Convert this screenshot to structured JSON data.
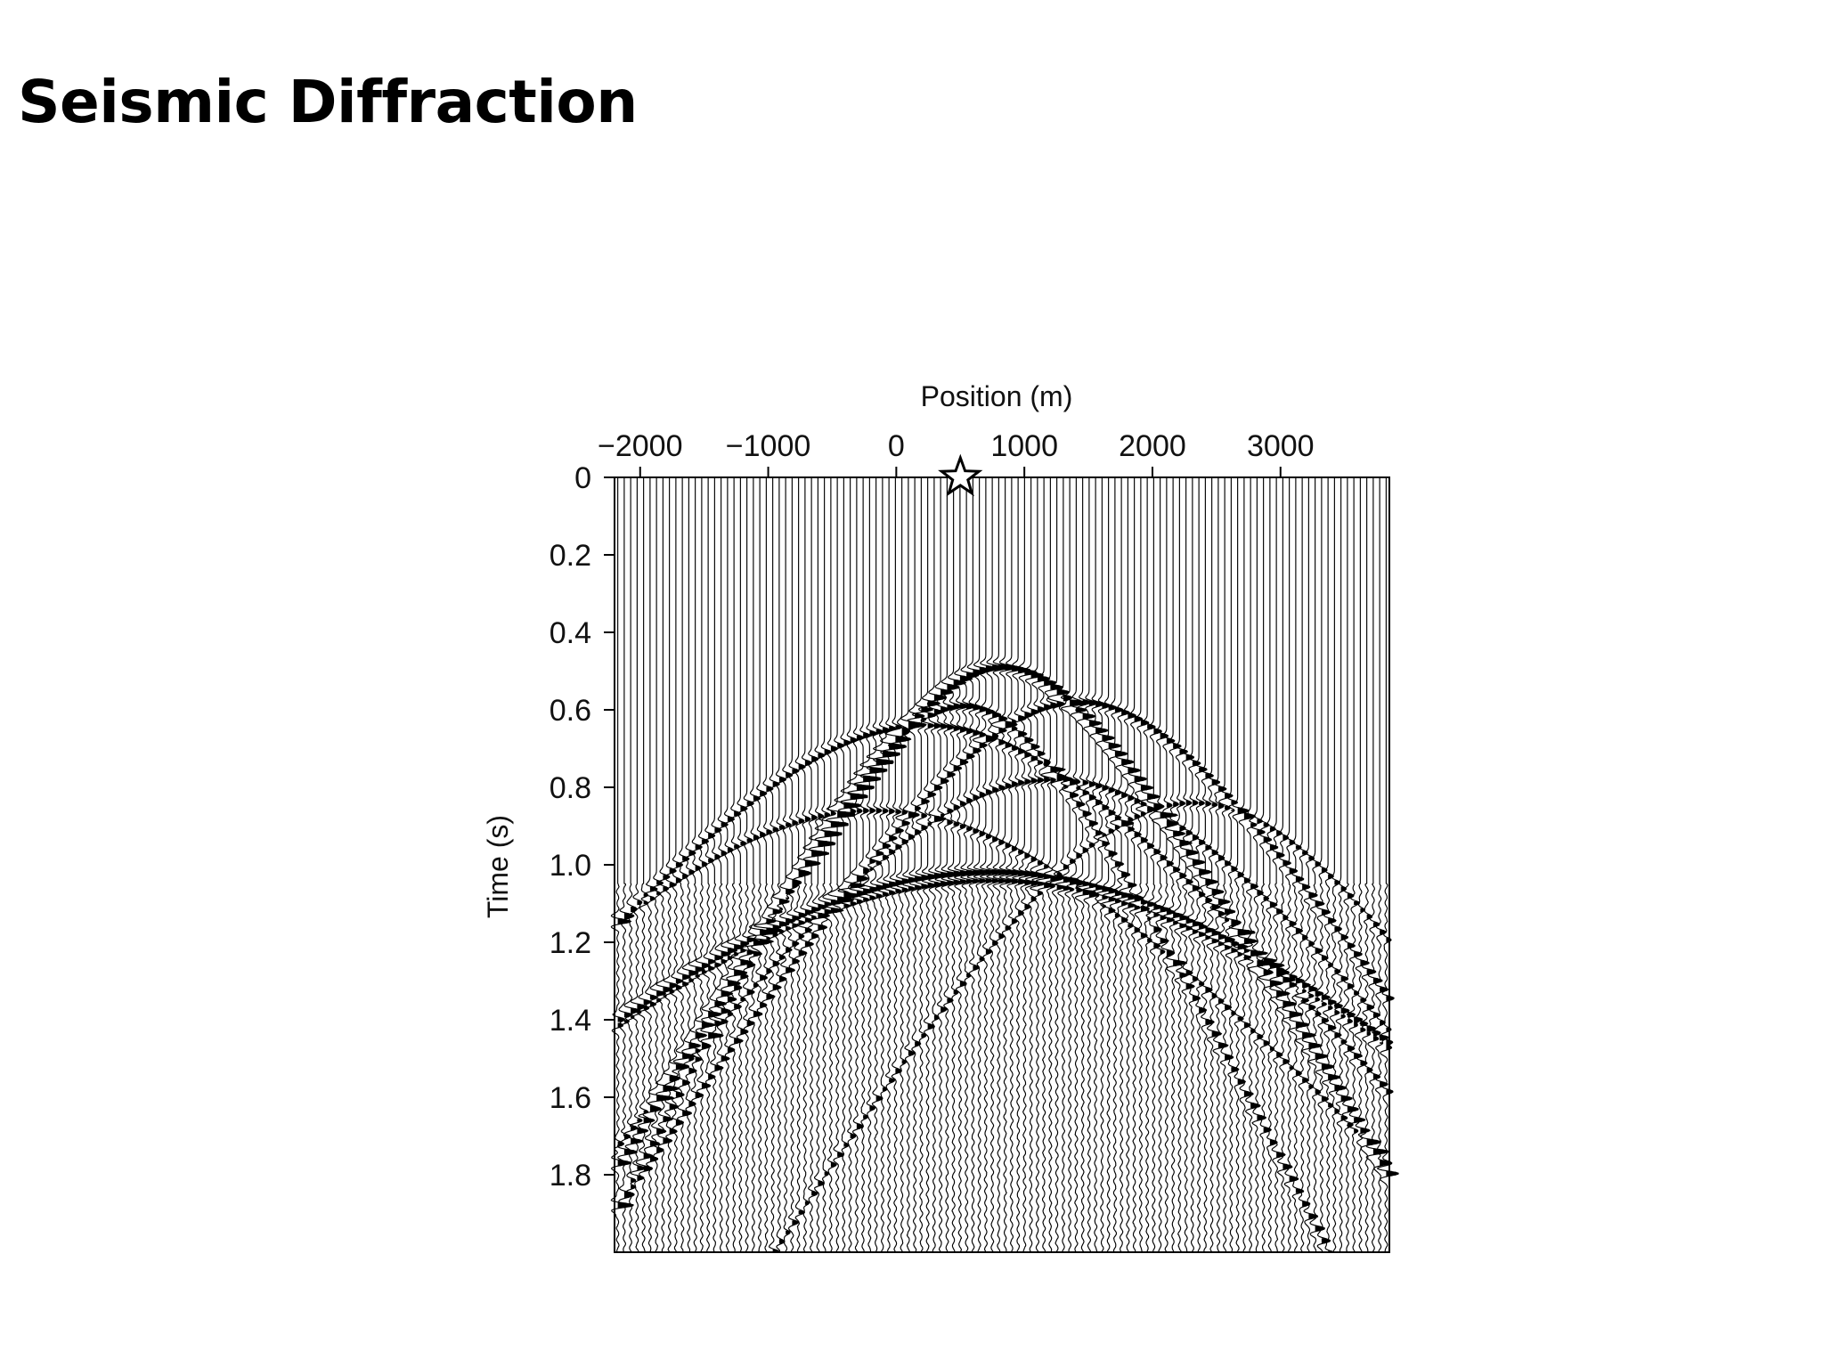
{
  "slide": {
    "title": "Seismic Diffraction"
  },
  "chart_data": {
    "type": "seismic-wiggle",
    "title": "",
    "xlabel": "Position (m)",
    "ylabel": "Time (s)",
    "xlim": [
      -2200,
      3850
    ],
    "ylim": [
      0,
      2.0
    ],
    "y_inverted": true,
    "x_axis_position": "top",
    "x_ticks": [
      -2000,
      -1000,
      0,
      1000,
      2000,
      3000
    ],
    "x_tick_labels": [
      "−2000",
      "−1000",
      "0",
      "1000",
      "2000",
      "3000"
    ],
    "y_ticks": [
      0,
      0.2,
      0.4,
      0.6,
      0.8,
      1.0,
      1.2,
      1.4,
      1.6,
      1.8
    ],
    "y_tick_labels": [
      "0",
      "0.2",
      "0.4",
      "0.6",
      "0.8",
      "1.0",
      "1.2",
      "1.4",
      "1.6",
      "1.8"
    ],
    "trace_count": 120,
    "source_marker": {
      "symbol": "star",
      "x": 500,
      "t": 0
    },
    "events": [
      {
        "apex_x": 800,
        "apex_t": 0.49,
        "velocity": 1750,
        "strength": 1.0
      },
      {
        "apex_x": 500,
        "apex_t": 0.59,
        "velocity": 1500,
        "strength": 0.7
      },
      {
        "apex_x": 1400,
        "apex_t": 0.58,
        "velocity": 2000,
        "strength": 0.65
      },
      {
        "apex_x": 200,
        "apex_t": 0.64,
        "velocity": 2500,
        "strength": 0.55
      },
      {
        "apex_x": 1200,
        "apex_t": 0.78,
        "velocity": 2200,
        "strength": 0.5
      },
      {
        "apex_x": 2300,
        "apex_t": 0.84,
        "velocity": 1800,
        "strength": 0.45
      },
      {
        "apex_x": -200,
        "apex_t": 0.86,
        "velocity": 2600,
        "strength": 0.45
      },
      {
        "apex_x": 700,
        "apex_t": 1.02,
        "velocity": 3000,
        "strength": 1.0
      },
      {
        "apex_x": 700,
        "apex_t": 1.04,
        "velocity": 3000,
        "strength": 0.8
      }
    ],
    "grid": false,
    "legend": "none"
  },
  "colors": {
    "ink": "#000000",
    "background": "#ffffff"
  }
}
